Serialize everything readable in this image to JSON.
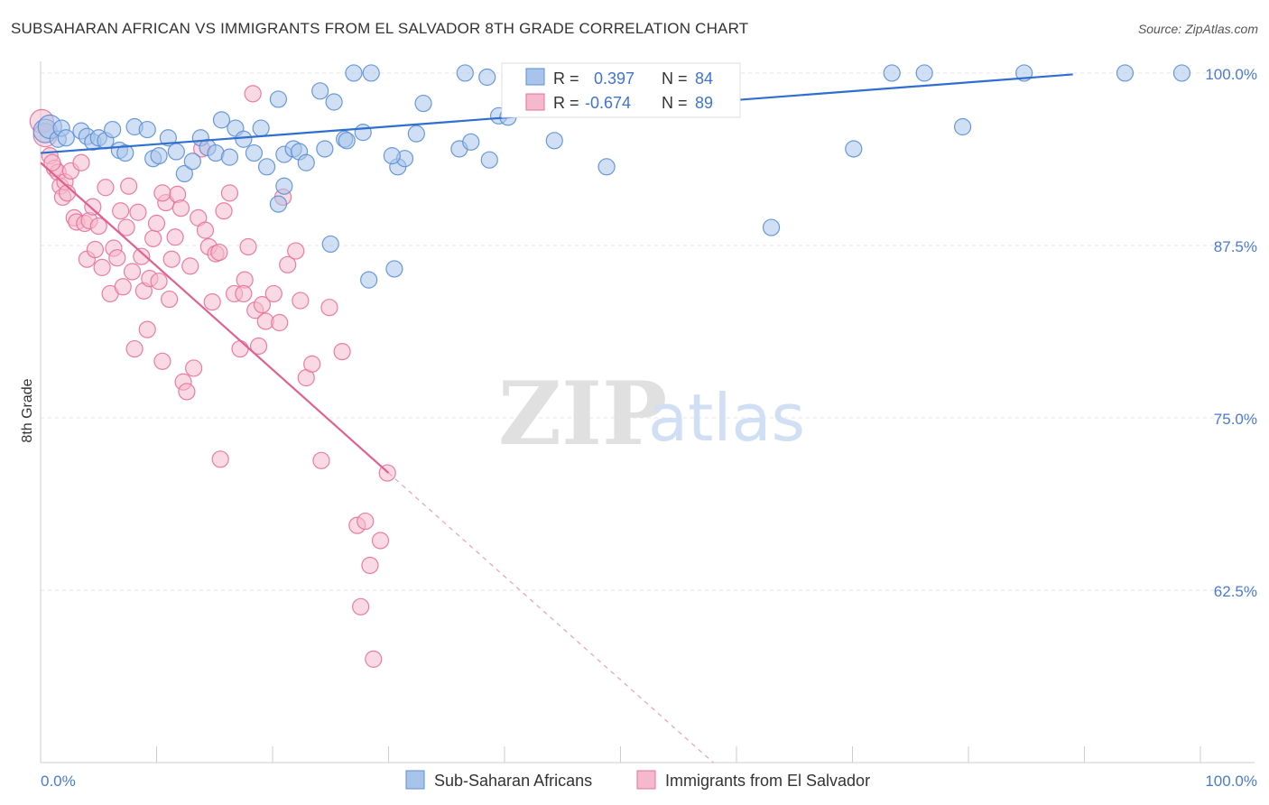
{
  "title": "SUBSAHARAN AFRICAN VS IMMIGRANTS FROM EL SALVADOR 8TH GRADE CORRELATION CHART",
  "source": "Source: ZipAtlas.com",
  "watermark": {
    "zip": "ZIP",
    "atlas": "atlas"
  },
  "colors": {
    "blue": "#5b8fd6",
    "blue_fill": "#a9c4ea",
    "pink": "#e8709a",
    "pink_fill": "#f4b9cc",
    "accent_text": "#4a7bd0"
  },
  "legend": {
    "r_label": "R =",
    "n_label": "N =",
    "rows": [
      {
        "r": "0.397",
        "n": "84",
        "color": "#5b8fd6"
      },
      {
        "r": "-0.674",
        "n": "89",
        "color": "#e8709a"
      }
    ]
  },
  "chart_data": {
    "type": "scatter",
    "ylabel": "8th Grade",
    "xlim": [
      0,
      100
    ],
    "ylim": [
      50,
      101.5
    ],
    "y_ticks": [
      100.0,
      87.5,
      75.0,
      62.5
    ],
    "y_tick_labels": [
      "100.0%",
      "87.5%",
      "75.0%",
      "62.5%"
    ],
    "x_tick_labels": [
      "0.0%",
      "100.0%"
    ],
    "grid": true,
    "legend_position": "top-center",
    "series": [
      {
        "name": "Sub-Saharan Africans",
        "color": "#5b8fd6",
        "trend": {
          "x": [
            0,
            89
          ],
          "y": [
            94.2,
            99.9
          ]
        },
        "points": [
          [
            0.4,
            95.8
          ],
          [
            0.8,
            96.1
          ],
          [
            1.5,
            95.2
          ],
          [
            1.8,
            96.0
          ],
          [
            2.2,
            95.3
          ],
          [
            3.5,
            95.8
          ],
          [
            4.0,
            95.4
          ],
          [
            4.5,
            95.0
          ],
          [
            5.0,
            95.3
          ],
          [
            5.6,
            95.1
          ],
          [
            6.2,
            95.9
          ],
          [
            6.8,
            94.4
          ],
          [
            7.3,
            94.2
          ],
          [
            8.1,
            96.1
          ],
          [
            9.2,
            95.9
          ],
          [
            9.7,
            93.8
          ],
          [
            10.2,
            94.0
          ],
          [
            11.0,
            95.3
          ],
          [
            11.7,
            94.3
          ],
          [
            12.4,
            92.7
          ],
          [
            13.1,
            93.6
          ],
          [
            13.8,
            95.3
          ],
          [
            14.4,
            94.6
          ],
          [
            15.1,
            94.2
          ],
          [
            15.6,
            96.6
          ],
          [
            16.3,
            93.9
          ],
          [
            16.8,
            96.0
          ],
          [
            17.5,
            95.2
          ],
          [
            18.4,
            94.2
          ],
          [
            19.0,
            96.0
          ],
          [
            19.5,
            93.2
          ],
          [
            20.5,
            98.1
          ],
          [
            21.0,
            94.1
          ],
          [
            21.8,
            94.5
          ],
          [
            22.3,
            94.3
          ],
          [
            22.9,
            93.5
          ],
          [
            24.1,
            98.7
          ],
          [
            24.5,
            94.5
          ],
          [
            25.3,
            97.9
          ],
          [
            26.2,
            95.2
          ],
          [
            26.4,
            95.1
          ],
          [
            27.0,
            100.0
          ],
          [
            27.8,
            95.7
          ],
          [
            28.5,
            100.0
          ],
          [
            30.5,
            85.8
          ],
          [
            30.8,
            93.2
          ],
          [
            31.4,
            93.8
          ],
          [
            32.4,
            95.6
          ],
          [
            33.0,
            97.8
          ],
          [
            36.1,
            94.5
          ],
          [
            36.6,
            100.0
          ],
          [
            37.1,
            95.0
          ],
          [
            38.5,
            99.7
          ],
          [
            38.7,
            93.7
          ],
          [
            39.5,
            96.9
          ],
          [
            40.3,
            96.8
          ],
          [
            41.0,
            100.0
          ],
          [
            41.5,
            100.0
          ],
          [
            42.2,
            100.0
          ],
          [
            42.8,
            97.6
          ],
          [
            44.3,
            95.1
          ],
          [
            44.5,
            100.0
          ],
          [
            47.8,
            100.0
          ],
          [
            48.4,
            99.7
          ],
          [
            48.8,
            93.2
          ],
          [
            51.5,
            100.0
          ],
          [
            53.2,
            100.0
          ],
          [
            56.6,
            100.0
          ],
          [
            57.1,
            99.5
          ],
          [
            58.0,
            99.5
          ],
          [
            59.5,
            100.0
          ],
          [
            63.0,
            88.8
          ],
          [
            70.1,
            94.5
          ],
          [
            73.4,
            100.0
          ],
          [
            76.2,
            100.0
          ],
          [
            79.5,
            96.1
          ],
          [
            84.8,
            100.0
          ],
          [
            93.5,
            100.0
          ],
          [
            98.4,
            100.0
          ],
          [
            20.5,
            90.5
          ],
          [
            21.0,
            91.8
          ],
          [
            25.0,
            87.6
          ],
          [
            28.3,
            85.0
          ],
          [
            30.3,
            94.0
          ]
        ]
      },
      {
        "name": "Immigrants from El Salvador",
        "color": "#e8709a",
        "trend": {
          "x": [
            0,
            30
          ],
          "y": [
            93.5,
            71.0
          ]
        },
        "trend_ext": {
          "x": [
            30,
            58
          ],
          "y": [
            71.0,
            50.0
          ]
        },
        "points": [
          [
            0.1,
            96.5
          ],
          [
            0.4,
            95.5
          ],
          [
            0.8,
            94.0
          ],
          [
            1.2,
            93.1
          ],
          [
            1.5,
            92.8
          ],
          [
            1.7,
            91.8
          ],
          [
            1.9,
            91.0
          ],
          [
            2.1,
            92.1
          ],
          [
            2.3,
            91.3
          ],
          [
            2.6,
            92.9
          ],
          [
            2.9,
            89.5
          ],
          [
            3.1,
            89.2
          ],
          [
            3.5,
            93.5
          ],
          [
            3.8,
            89.1
          ],
          [
            4.0,
            86.5
          ],
          [
            4.2,
            89.3
          ],
          [
            4.5,
            90.3
          ],
          [
            4.7,
            87.2
          ],
          [
            5.0,
            88.9
          ],
          [
            5.3,
            85.9
          ],
          [
            5.6,
            91.7
          ],
          [
            6.0,
            84.0
          ],
          [
            6.3,
            87.3
          ],
          [
            6.6,
            86.6
          ],
          [
            6.9,
            90.0
          ],
          [
            7.1,
            84.5
          ],
          [
            7.4,
            88.8
          ],
          [
            7.6,
            91.8
          ],
          [
            7.9,
            85.6
          ],
          [
            8.1,
            80.0
          ],
          [
            8.4,
            89.9
          ],
          [
            8.7,
            86.7
          ],
          [
            8.9,
            84.2
          ],
          [
            9.2,
            81.4
          ],
          [
            9.4,
            85.1
          ],
          [
            9.7,
            88.0
          ],
          [
            10.0,
            89.1
          ],
          [
            10.2,
            84.9
          ],
          [
            10.5,
            79.1
          ],
          [
            10.8,
            90.6
          ],
          [
            11.1,
            83.6
          ],
          [
            11.3,
            86.5
          ],
          [
            11.6,
            88.1
          ],
          [
            11.8,
            91.2
          ],
          [
            12.1,
            90.2
          ],
          [
            12.3,
            77.6
          ],
          [
            12.6,
            76.9
          ],
          [
            12.9,
            86.0
          ],
          [
            13.2,
            78.6
          ],
          [
            13.6,
            89.5
          ],
          [
            13.9,
            94.5
          ],
          [
            14.2,
            88.6
          ],
          [
            14.5,
            87.4
          ],
          [
            14.8,
            83.4
          ],
          [
            15.1,
            86.9
          ],
          [
            15.4,
            87.0
          ],
          [
            15.8,
            90.0
          ],
          [
            16.3,
            91.3
          ],
          [
            16.7,
            84.0
          ],
          [
            17.2,
            80.0
          ],
          [
            17.6,
            85.0
          ],
          [
            17.9,
            87.4
          ],
          [
            18.5,
            82.8
          ],
          [
            18.8,
            80.2
          ],
          [
            19.1,
            83.2
          ],
          [
            19.4,
            82.0
          ],
          [
            20.1,
            84.0
          ],
          [
            20.6,
            81.9
          ],
          [
            20.9,
            91.0
          ],
          [
            21.3,
            86.1
          ],
          [
            22.0,
            87.1
          ],
          [
            22.4,
            83.5
          ],
          [
            22.9,
            77.9
          ],
          [
            23.4,
            78.9
          ],
          [
            24.2,
            71.9
          ],
          [
            24.9,
            83.0
          ],
          [
            26.0,
            79.8
          ],
          [
            27.3,
            67.2
          ],
          [
            27.6,
            61.3
          ],
          [
            28.0,
            67.5
          ],
          [
            28.4,
            64.3
          ],
          [
            28.7,
            57.5
          ],
          [
            29.3,
            66.1
          ],
          [
            29.9,
            71.0
          ],
          [
            18.3,
            98.5
          ],
          [
            1.0,
            93.5
          ],
          [
            15.5,
            72.0
          ],
          [
            10.5,
            91.3
          ],
          [
            17.5,
            84.0
          ]
        ]
      }
    ]
  }
}
